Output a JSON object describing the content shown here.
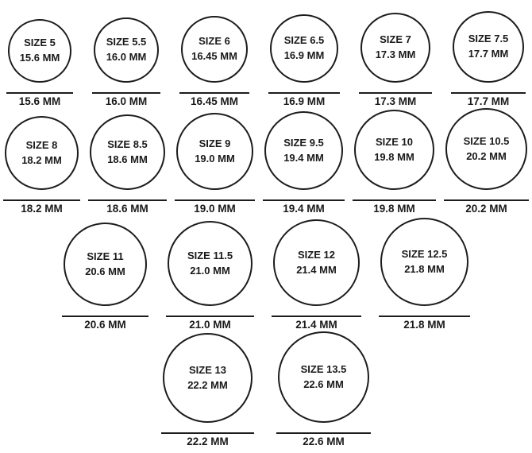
{
  "unit": "MM",
  "rows": [
    {
      "items": [
        {
          "size_label": "SIZE 5",
          "mm_label": "15.6 MM",
          "measure_label": "15.6 MM",
          "mm_value": 15.6
        },
        {
          "size_label": "SIZE 5.5",
          "mm_label": "16.0 MM",
          "measure_label": "16.0 MM",
          "mm_value": 16.0
        },
        {
          "size_label": "SIZE 6",
          "mm_label": "16.45 MM",
          "measure_label": "16.45 MM",
          "mm_value": 16.45
        },
        {
          "size_label": "SIZE 6.5",
          "mm_label": "16.9 MM",
          "measure_label": "16.9 MM",
          "mm_value": 16.9
        },
        {
          "size_label": "SIZE 7",
          "mm_label": "17.3 MM",
          "measure_label": "17.3 MM",
          "mm_value": 17.3
        },
        {
          "size_label": "SIZE 7.5",
          "mm_label": "17.7 MM",
          "measure_label": "17.7 MM",
          "mm_value": 17.7
        }
      ]
    },
    {
      "items": [
        {
          "size_label": "SIZE 8",
          "mm_label": "18.2 MM",
          "measure_label": "18.2 MM",
          "mm_value": 18.2
        },
        {
          "size_label": "SIZE 8.5",
          "mm_label": "18.6 MM",
          "measure_label": "18.6 MM",
          "mm_value": 18.6
        },
        {
          "size_label": "SIZE 9",
          "mm_label": "19.0 MM",
          "measure_label": "19.0 MM",
          "mm_value": 19.0
        },
        {
          "size_label": "SIZE 9.5",
          "mm_label": "19.4 MM",
          "measure_label": "19.4 MM",
          "mm_value": 19.4
        },
        {
          "size_label": "SIZE 10",
          "mm_label": "19.8 MM",
          "measure_label": "19.8 MM",
          "mm_value": 19.8
        },
        {
          "size_label": "SIZE 10.5",
          "mm_label": "20.2 MM",
          "measure_label": "20.2 MM",
          "mm_value": 20.2
        }
      ]
    },
    {
      "items": [
        {
          "size_label": "SIZE 11",
          "mm_label": "20.6 MM",
          "measure_label": "20.6 MM",
          "mm_value": 20.6
        },
        {
          "size_label": "SIZE 11.5",
          "mm_label": "21.0 MM",
          "measure_label": "21.0 MM",
          "mm_value": 21.0
        },
        {
          "size_label": "SIZE 12",
          "mm_label": "21.4 MM",
          "measure_label": "21.4 MM",
          "mm_value": 21.4
        },
        {
          "size_label": "SIZE 12.5",
          "mm_label": "21.8 MM",
          "measure_label": "21.8 MM",
          "mm_value": 21.8
        }
      ]
    },
    {
      "items": [
        {
          "size_label": "SIZE 13",
          "mm_label": "22.2 MM",
          "measure_label": "22.2 MM",
          "mm_value": 22.2
        },
        {
          "size_label": "SIZE 13.5",
          "mm_label": "22.6 MM",
          "measure_label": "22.6 MM",
          "mm_value": 22.6
        }
      ]
    }
  ]
}
